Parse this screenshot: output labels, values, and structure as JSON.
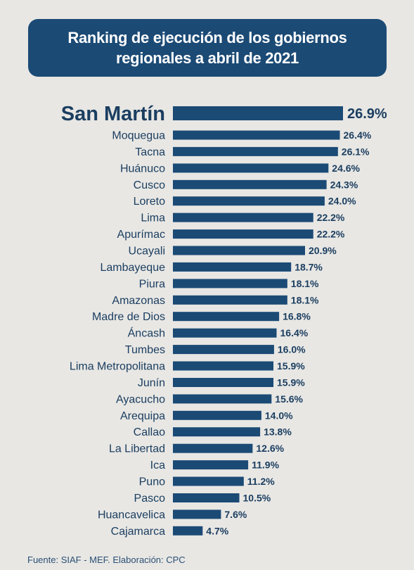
{
  "title_lines": [
    "Ranking de ejecución de los gobiernos",
    "regionales a abril de 2021"
  ],
  "source": "Fuente: SIAF - MEF. Elaboración: CPC",
  "colors": {
    "bar": "#1b4a75",
    "text": "#1b3e60",
    "background": "#e8e7e4",
    "title_bg": "#1b4a75"
  },
  "chart_data": {
    "type": "bar",
    "orientation": "horizontal",
    "highlight": "San Martín",
    "categories": [
      "San Martín",
      "Moquegua",
      "Tacna",
      "Huánuco",
      "Cusco",
      "Loreto",
      "Lima",
      "Apurímac",
      "Ucayali",
      "Lambayeque",
      "Piura",
      "Amazonas",
      "Madre de Dios",
      "Áncash",
      "Tumbes",
      "Lima Metropolitana",
      "Junín",
      "Ayacucho",
      "Arequipa",
      "Callao",
      "La Libertad",
      "Ica",
      "Puno",
      "Pasco",
      "Huancavelica",
      "Cajamarca"
    ],
    "values": [
      26.9,
      26.4,
      26.1,
      24.6,
      24.3,
      24.0,
      22.2,
      22.2,
      20.9,
      18.7,
      18.1,
      18.1,
      16.8,
      16.4,
      16.0,
      15.9,
      15.9,
      15.6,
      14.0,
      13.8,
      12.6,
      11.9,
      11.2,
      10.5,
      7.6,
      4.7
    ],
    "labels": [
      "26.9%",
      "26.4%",
      "26.1%",
      "24.6%",
      "24.3%",
      "24.0%",
      "22.2%",
      "22.2%",
      "20.9%",
      "18.7%",
      "18.1%",
      "18.1%",
      "16.8%",
      "16.4%",
      "16.0%",
      "15.9%",
      "15.9%",
      "15.6%",
      "14.0%",
      "13.8%",
      "12.6%",
      "11.9%",
      "11.2%",
      "10.5%",
      "7.6%",
      "4.7%"
    ],
    "title": "Ranking de ejecución de los gobiernos regionales a abril de 2021",
    "xlim": [
      0,
      26.9
    ],
    "grid": false,
    "legend": "none"
  }
}
